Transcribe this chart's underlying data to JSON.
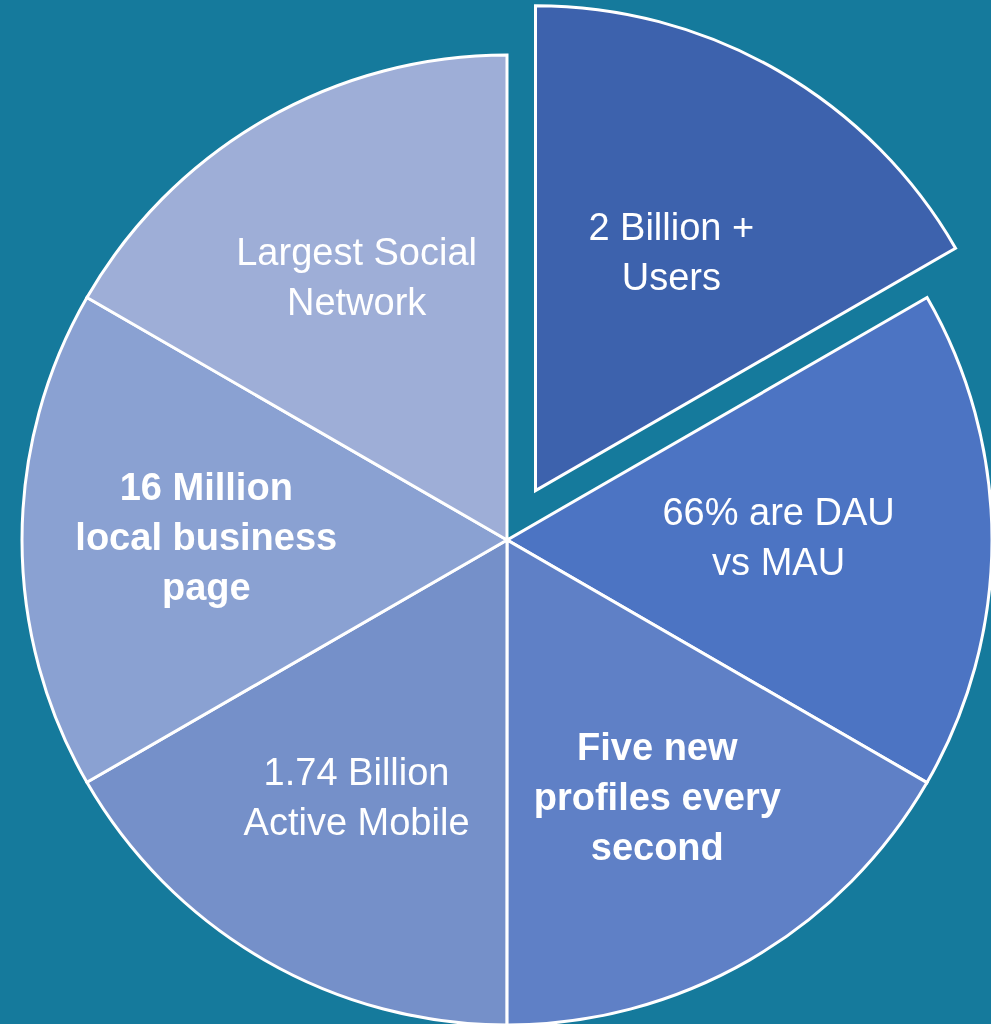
{
  "chart_data": {
    "type": "pie",
    "categories": [
      "2 Billion +\nUsers",
      "66% are DAU\nvs MAU",
      "Five new\nprofiles every\nsecond",
      "1.74 Billion\nActive Mobile",
      "16 Million\nlocal business\npage",
      "Largest Social\nNetwork"
    ],
    "values": [
      16.67,
      16.67,
      16.67,
      16.67,
      16.66,
      16.67
    ],
    "colors": [
      "#3d62ad",
      "#4c74c3",
      "#5f80c6",
      "#7590c9",
      "#8aa1d2",
      "#9eaed7"
    ]
  }
}
